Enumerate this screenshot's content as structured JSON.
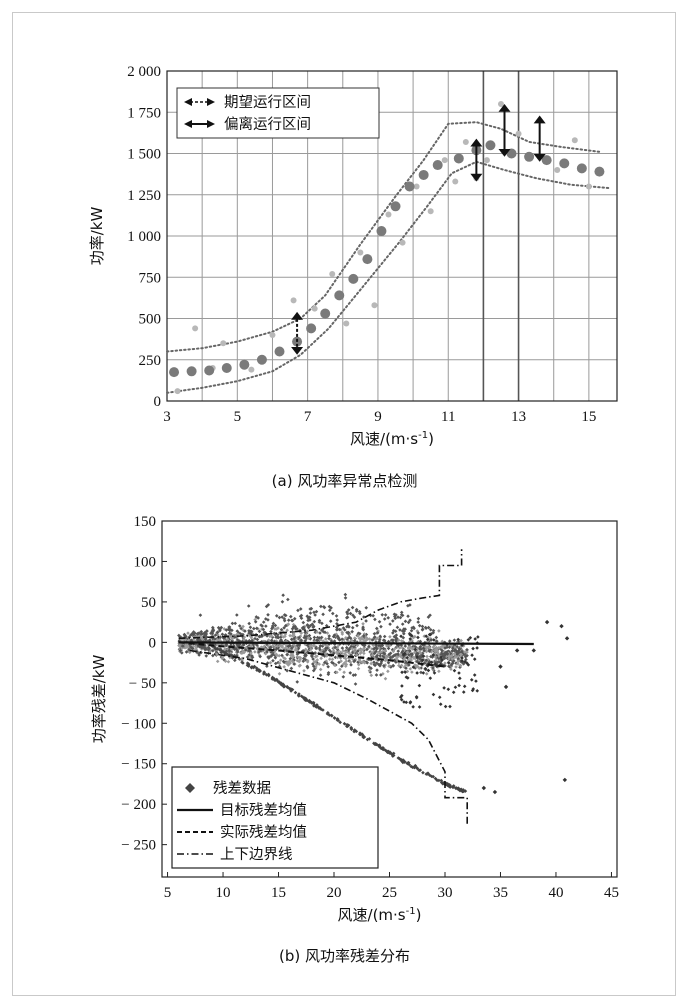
{
  "chart_data": [
    {
      "type": "scatter",
      "caption": "(a) 风功率异常点检测",
      "xlabel": "风速/(m·s",
      "xlabel_sup": "-1",
      "xlabel_tail": ")",
      "ylabel": "功率/kW",
      "xlim": [
        3,
        15.8
      ],
      "ylim": [
        0,
        2000
      ],
      "x_ticks": [
        3,
        5,
        7,
        9,
        11,
        13,
        15
      ],
      "y_ticks": [
        0,
        250,
        500,
        750,
        1000,
        1250,
        1500,
        1750,
        2000
      ],
      "y_tick_labels": [
        "0",
        "250",
        "500",
        "750",
        "1 000",
        "1 250",
        "1 500",
        "1 750",
        "2 000"
      ],
      "grid": true,
      "legend": {
        "position": "top-left",
        "items": [
          "期望运行区间",
          "偏离运行区间"
        ]
      },
      "series": [
        {
          "points": [
            [
              3.2,
              175
            ],
            [
              3.7,
              180
            ],
            [
              4.2,
              185
            ],
            [
              4.7,
              200
            ],
            [
              5.2,
              220
            ],
            [
              5.7,
              250
            ],
            [
              6.2,
              300
            ],
            [
              6.7,
              360
            ],
            [
              7.1,
              440
            ],
            [
              7.5,
              530
            ],
            [
              7.9,
              640
            ],
            [
              8.3,
              740
            ],
            [
              8.7,
              860
            ],
            [
              9.1,
              1030
            ],
            [
              9.5,
              1180
            ],
            [
              9.9,
              1300
            ],
            [
              10.3,
              1370
            ],
            [
              10.7,
              1430
            ],
            [
              11.3,
              1470
            ],
            [
              11.8,
              1520
            ],
            [
              12.2,
              1550
            ],
            [
              12.8,
              1500
            ],
            [
              13.3,
              1480
            ],
            [
              13.8,
              1460
            ],
            [
              14.3,
              1440
            ],
            [
              14.8,
              1410
            ],
            [
              15.3,
              1390
            ]
          ]
        },
        {
          "points": [
            [
              3.3,
              60
            ],
            [
              3.8,
              440
            ],
            [
              4.3,
              200
            ],
            [
              4.6,
              350
            ],
            [
              5.4,
              190
            ],
            [
              6.0,
              400
            ],
            [
              6.6,
              610
            ],
            [
              7.2,
              560
            ],
            [
              7.7,
              770
            ],
            [
              8.1,
              470
            ],
            [
              8.5,
              900
            ],
            [
              8.9,
              580
            ],
            [
              9.3,
              1130
            ],
            [
              9.7,
              960
            ],
            [
              10.1,
              1300
            ],
            [
              10.5,
              1150
            ],
            [
              10.9,
              1460
            ],
            [
              11.2,
              1330
            ],
            [
              11.5,
              1570
            ],
            [
              11.8,
              1350
            ],
            [
              12.1,
              1460
            ],
            [
              12.5,
              1800
            ],
            [
              13.0,
              1620
            ],
            [
              13.6,
              1480
            ],
            [
              14.1,
              1400
            ],
            [
              14.6,
              1580
            ],
            [
              15.0,
              1300
            ]
          ]
        },
        {
          "name": "上边界",
          "points": [
            [
              3,
              300
            ],
            [
              4,
              320
            ],
            [
              5,
              360
            ],
            [
              6,
              420
            ],
            [
              6.8,
              500
            ],
            [
              7.5,
              640
            ],
            [
              8.5,
              950
            ],
            [
              9.5,
              1240
            ],
            [
              10.3,
              1460
            ],
            [
              11,
              1680
            ],
            [
              11.8,
              1690
            ],
            [
              12.5,
              1650
            ],
            [
              13.3,
              1570
            ],
            [
              14.2,
              1540
            ],
            [
              15.3,
              1510
            ]
          ]
        },
        {
          "name": "下边界",
          "points": [
            [
              3,
              50
            ],
            [
              4,
              80
            ],
            [
              5,
              120
            ],
            [
              6,
              180
            ],
            [
              6.8,
              280
            ],
            [
              7.6,
              440
            ],
            [
              8.6,
              700
            ],
            [
              9.6,
              960
            ],
            [
              10.4,
              1180
            ],
            [
              11.1,
              1380
            ],
            [
              11.8,
              1450
            ],
            [
              12.6,
              1400
            ],
            [
              13.5,
              1350
            ],
            [
              14.5,
              1310
            ],
            [
              15.6,
              1290
            ]
          ]
        }
      ],
      "arrows": [
        {
          "x": 6.7,
          "y1": 540,
          "y2": 280
        },
        {
          "x": 11.8,
          "y1": 1590,
          "y2": 1330
        },
        {
          "x": 12.6,
          "y1": 1800,
          "y2": 1480
        },
        {
          "x": 13.6,
          "y1": 1730,
          "y2": 1450
        }
      ]
    },
    {
      "type": "scatter",
      "caption": "(b) 风功率残差分布",
      "xlabel": "风速/(m·s",
      "xlabel_sup": "-1",
      "xlabel_tail": ")",
      "ylabel": "功率残差/kW",
      "xlim": [
        4.5,
        45.5
      ],
      "ylim": [
        -290,
        150
      ],
      "x_ticks": [
        5,
        10,
        15,
        20,
        25,
        30,
        35,
        40,
        45
      ],
      "y_ticks": [
        150,
        100,
        50,
        0,
        -50,
        -100,
        -150,
        -200,
        -250
      ],
      "y_tick_labels": [
        "150",
        "100",
        "50",
        "0",
        "− 50",
        "− 100",
        "− 150",
        "− 200",
        "− 250"
      ],
      "grid": false,
      "legend": {
        "position": "bottom-left",
        "items": [
          "残差数据",
          "目标残差均值",
          "实际残差均值",
          "上下边界线"
        ]
      },
      "series": [
        {
          "name": "目标残差均值",
          "points": [
            [
              6,
              0
            ],
            [
              38,
              -2
            ]
          ]
        },
        {
          "name": "实际残差均值",
          "points": [
            [
              6,
              0
            ],
            [
              10,
              -5
            ],
            [
              15,
              -10
            ],
            [
              20,
              -16
            ],
            [
              25,
              -22
            ],
            [
              30,
              -30
            ]
          ]
        },
        {
          "name": "上边界线",
          "points": [
            [
              6,
              5
            ],
            [
              12,
              8
            ],
            [
              18,
              15
            ],
            [
              22,
              25
            ],
            [
              24,
              40
            ],
            [
              26,
              50
            ],
            [
              28,
              55
            ],
            [
              29.5,
              58
            ],
            [
              29.5,
              95
            ],
            [
              31.5,
              95
            ],
            [
              31.5,
              115
            ]
          ]
        },
        {
          "name": "下边界线",
          "points": [
            [
              7,
              -10
            ],
            [
              12,
              -20
            ],
            [
              16,
              -35
            ],
            [
              20,
              -50
            ],
            [
              23,
              -70
            ],
            [
              25,
              -85
            ],
            [
              27,
              -100
            ],
            [
              28.5,
              -120
            ],
            [
              30,
              -160
            ],
            [
              30,
              -192
            ],
            [
              32,
              -192
            ],
            [
              32,
              -225
            ]
          ]
        },
        {
          "name": "残差数据",
          "band_lower_edge": [
            [
              9,
              -5
            ],
            [
              14,
              -40
            ],
            [
              18,
              -75
            ],
            [
              22,
              -110
            ],
            [
              26,
              -145
            ],
            [
              30,
              -175
            ],
            [
              32,
              -185
            ]
          ],
          "outliers": [
            [
              33.5,
              -180
            ],
            [
              34.5,
              -185
            ],
            [
              35,
              -30
            ],
            [
              36.5,
              -10
            ],
            [
              39.2,
              25
            ],
            [
              40.5,
              20
            ],
            [
              41,
              5
            ],
            [
              40.8,
              -170
            ],
            [
              38,
              -10
            ],
            [
              35.5,
              -55
            ]
          ]
        }
      ]
    }
  ]
}
